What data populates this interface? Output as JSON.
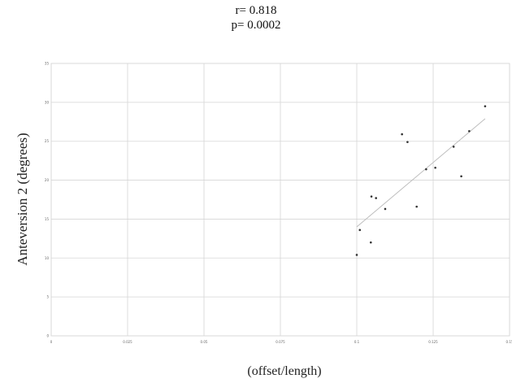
{
  "stats": {
    "r": "r= 0.818",
    "p": "p= 0.0002"
  },
  "chart_data": {
    "type": "scatter",
    "title": "",
    "xlabel": "(offset/length)",
    "ylabel": "Anteversion 2 (degrees)",
    "xlim": [
      0,
      0.15
    ],
    "ylim": [
      0,
      35
    ],
    "x_ticks": [
      "0",
      "0.025",
      "0.05",
      "0.075",
      "0.1",
      "0.125",
      "0.15"
    ],
    "y_ticks": [
      "0",
      "5",
      "10",
      "15",
      "20",
      "25",
      "30",
      "35"
    ],
    "grid": true,
    "points": [
      {
        "x": 0.1,
        "y": 10.4
      },
      {
        "x": 0.101,
        "y": 13.6
      },
      {
        "x": 0.1046,
        "y": 12.0
      },
      {
        "x": 0.1048,
        "y": 17.9
      },
      {
        "x": 0.1063,
        "y": 17.7
      },
      {
        "x": 0.1093,
        "y": 16.3
      },
      {
        "x": 0.1148,
        "y": 25.9
      },
      {
        "x": 0.1166,
        "y": 24.9
      },
      {
        "x": 0.1196,
        "y": 16.6
      },
      {
        "x": 0.1227,
        "y": 21.4
      },
      {
        "x": 0.1257,
        "y": 21.6
      },
      {
        "x": 0.1317,
        "y": 24.3
      },
      {
        "x": 0.1342,
        "y": 20.5
      },
      {
        "x": 0.1368,
        "y": 26.3
      },
      {
        "x": 0.142,
        "y": 29.5
      }
    ],
    "trendline": {
      "x": [
        0.1,
        0.142
      ],
      "y": [
        14.0,
        27.9
      ]
    }
  }
}
